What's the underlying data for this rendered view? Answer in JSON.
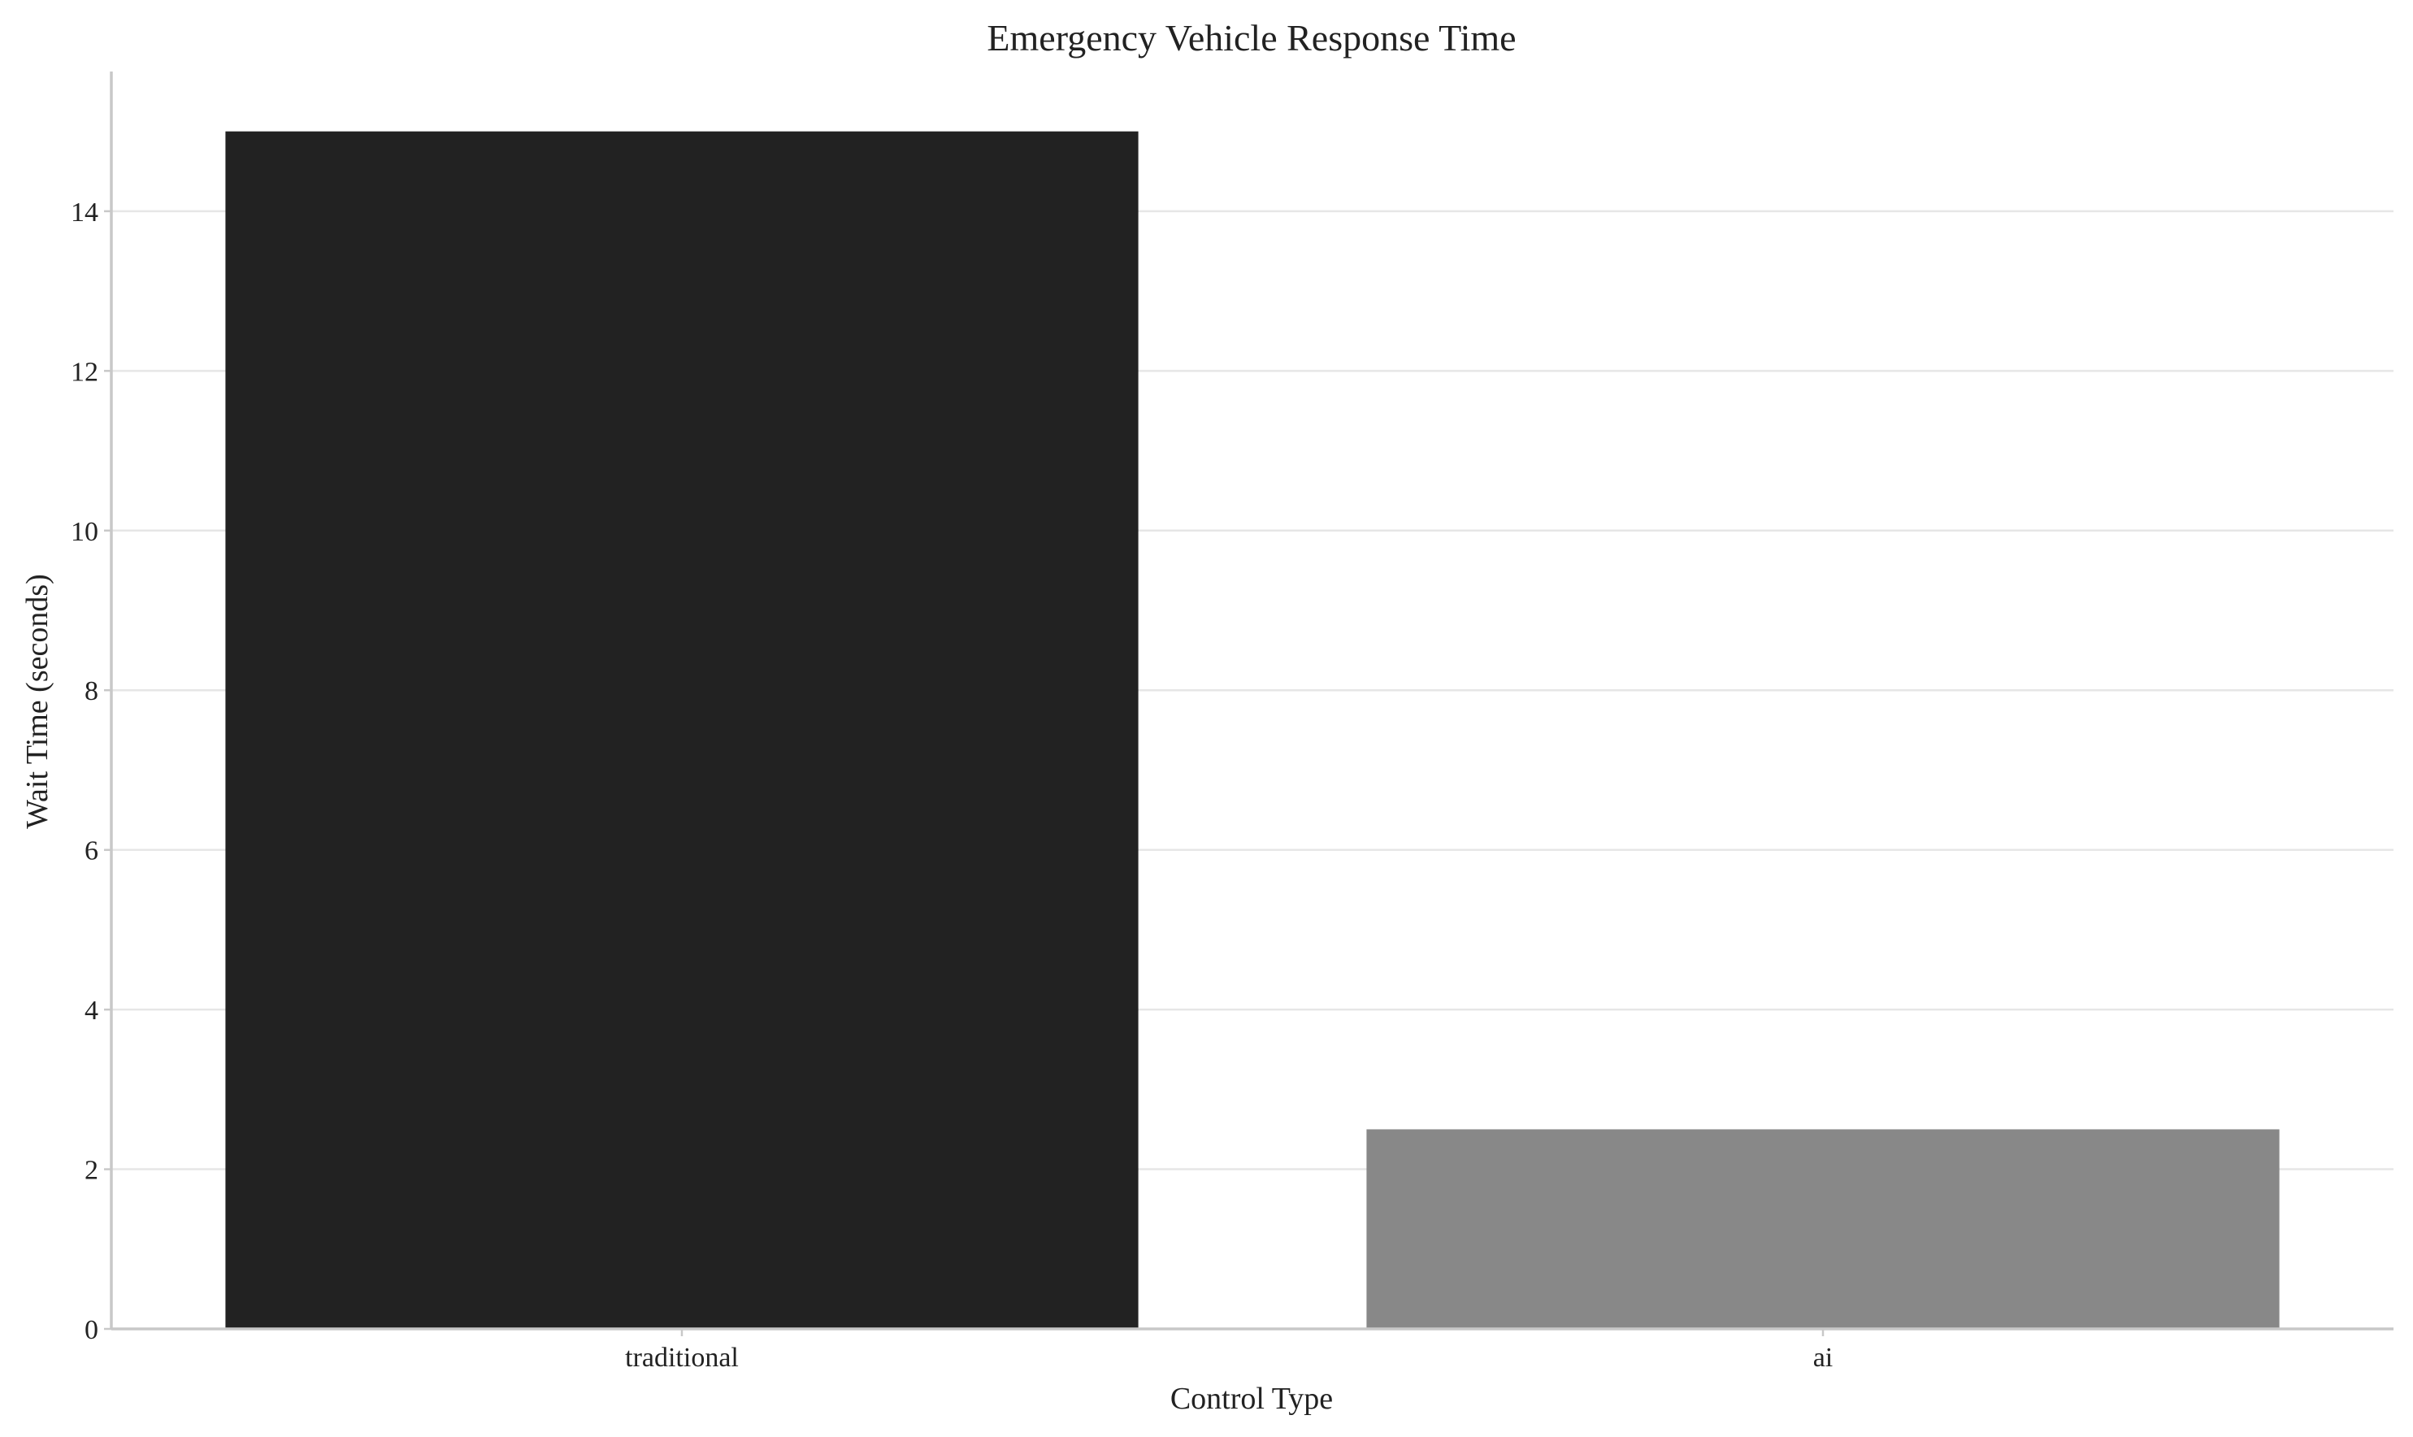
{
  "chart_data": {
    "type": "bar",
    "title": "Emergency Vehicle Response Time",
    "xlabel": "Control Type",
    "ylabel": "Wait Time (seconds)",
    "categories": [
      "traditional",
      "ai"
    ],
    "values": [
      15,
      2.5
    ],
    "colors": [
      "#222222",
      "#888888"
    ],
    "ylim": [
      0,
      15.75
    ],
    "yticks": [
      0,
      2,
      4,
      6,
      8,
      10,
      12,
      14
    ],
    "grid": "horizontal",
    "legend": "none"
  }
}
